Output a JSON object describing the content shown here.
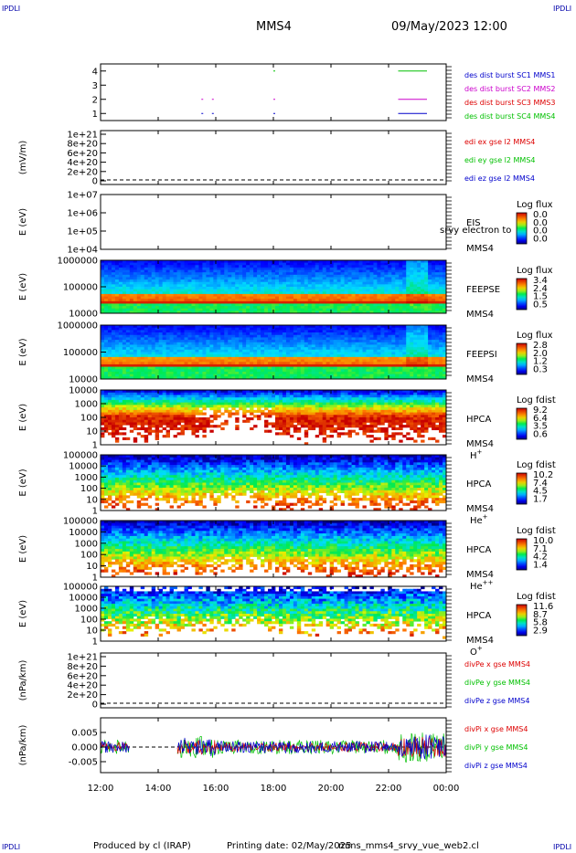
{
  "header": {
    "corner_label": "IPDLI",
    "spacecraft": "MMS4",
    "datetime": "09/May/2023 12:00"
  },
  "footer": {
    "produced_by": "Produced by cl (IRAP)",
    "printing_date": "Printing date: 02/May/2025",
    "filename": "mms_mms4_srvy_vue_web2.cl"
  },
  "colors": {
    "red": "#dd0000",
    "green": "#00c000",
    "blue": "#0000cc",
    "magenta": "#cc00cc"
  },
  "chart_data": [
    {
      "type": "line",
      "id": "burst",
      "yticks": [
        "1",
        "2",
        "3",
        "4"
      ],
      "ylim": [
        0.5,
        4.5
      ],
      "x_range": [
        "12:00",
        "00:00"
      ],
      "legend": [
        {
          "label": "des dist burst SC1 MMS1",
          "color": "#0000cc"
        },
        {
          "label": "des dist burst SC2 MMS2",
          "color": "#cc00cc"
        },
        {
          "label": "des dist burst SC3 MMS3",
          "color": "#dd0000"
        },
        {
          "label": "des dist burst SC4 MMS4",
          "color": "#00c000"
        }
      ],
      "segments": [
        {
          "y": 4,
          "color": "#00c000",
          "x": [
            [
              "18:00",
              "18:02"
            ],
            [
              "22:20",
              "23:20"
            ]
          ]
        },
        {
          "y": 2,
          "color": "#cc00cc",
          "x": [
            [
              "15:30",
              "15:33"
            ],
            [
              "15:52",
              "15:55"
            ],
            [
              "18:00",
              "18:03"
            ],
            [
              "22:20",
              "23:20"
            ]
          ]
        },
        {
          "y": 1,
          "color": "#0000cc",
          "x": [
            [
              "15:30",
              "15:33"
            ],
            [
              "15:52",
              "15:55"
            ],
            [
              "18:00",
              "18:03"
            ],
            [
              "22:20",
              "23:20"
            ]
          ]
        }
      ]
    },
    {
      "type": "line",
      "id": "edi",
      "ylabel": "(mV/m)",
      "yticks": [
        "0",
        "2e+20",
        "4e+20",
        "6e+20",
        "8e+20",
        "1e+21"
      ],
      "ylim": [
        0,
        1e+21
      ],
      "legend": [
        {
          "label": "edi ex gse l2 MMS4",
          "color": "#dd0000"
        },
        {
          "label": "edi ey gse l2 MMS4",
          "color": "#00c000"
        },
        {
          "label": "edi ez gse l2 MMS4",
          "color": "#0000cc"
        }
      ]
    },
    {
      "type": "heatmap",
      "id": "eis",
      "ylabel": "E (eV)",
      "yticks": [
        "1e+04",
        "1e+05",
        "1e+06",
        "1e+07"
      ],
      "labels": [
        "EIS",
        "MMS4"
      ],
      "overlay": "srvy electron to",
      "colorbar": {
        "title": "Log flux",
        "ticks": [
          "0.0",
          "0.0",
          "0.0",
          "0.0"
        ]
      }
    },
    {
      "type": "heatmap",
      "id": "feepse",
      "ylabel": "E (eV)",
      "yticks": [
        "10000",
        "100000",
        "1000000"
      ],
      "labels": [
        "FEEPSE",
        "MMS4"
      ],
      "colorbar": {
        "title": "Log flux",
        "ticks": [
          "3.4",
          "2.4",
          "1.5",
          "0.5"
        ]
      }
    },
    {
      "type": "heatmap",
      "id": "feepsi",
      "ylabel": "E (eV)",
      "yticks": [
        "10000",
        "100000",
        "1000000"
      ],
      "labels": [
        "FEEPSI",
        "MMS4"
      ],
      "colorbar": {
        "title": "Log flux",
        "ticks": [
          "2.8",
          "2.0",
          "1.2",
          "0.3"
        ]
      }
    },
    {
      "type": "heatmap",
      "id": "hpca_h",
      "ylabel": "E (eV)",
      "yticks": [
        "1",
        "10",
        "100",
        "1000",
        "10000"
      ],
      "labels": [
        "HPCA",
        "MMS4"
      ],
      "species": "H",
      "species_sup": "+",
      "colorbar": {
        "title": "Log fdist",
        "ticks": [
          "9.2",
          "6.4",
          "3.5",
          "0.6"
        ]
      }
    },
    {
      "type": "heatmap",
      "id": "hpca_he1",
      "ylabel": "E (eV)",
      "yticks": [
        "1",
        "10",
        "100",
        "1000",
        "10000",
        "100000"
      ],
      "labels": [
        "HPCA",
        "MMS4"
      ],
      "species": "He",
      "species_sup": "+",
      "colorbar": {
        "title": "Log fdist",
        "ticks": [
          "10.2",
          "7.4",
          "4.5",
          "1.7"
        ]
      }
    },
    {
      "type": "heatmap",
      "id": "hpca_he2",
      "ylabel": "E (eV)",
      "yticks": [
        "1",
        "10",
        "100",
        "1000",
        "10000",
        "100000"
      ],
      "labels": [
        "HPCA",
        "MMS4"
      ],
      "species": "He",
      "species_sup": "++",
      "colorbar": {
        "title": "Log fdist",
        "ticks": [
          "10.0",
          "7.1",
          "4.2",
          "1.4"
        ]
      }
    },
    {
      "type": "heatmap",
      "id": "hpca_o",
      "ylabel": "E (eV)",
      "yticks": [
        "1",
        "10",
        "100",
        "1000",
        "10000",
        "100000"
      ],
      "labels": [
        "HPCA",
        "MMS4"
      ],
      "species": "O",
      "species_sup": "+",
      "colorbar": {
        "title": "Log fdist",
        "ticks": [
          "11.6",
          "8.7",
          "5.8",
          "2.9"
        ]
      }
    },
    {
      "type": "line",
      "id": "divpe",
      "ylabel": "(nPa/km)",
      "yticks": [
        "0",
        "2e+20",
        "4e+20",
        "6e+20",
        "8e+20",
        "1e+21"
      ],
      "ylim": [
        0,
        1e+21
      ],
      "legend": [
        {
          "label": "divPe x gse MMS4",
          "color": "#dd0000"
        },
        {
          "label": "divPe y gse MMS4",
          "color": "#00c000"
        },
        {
          "label": "divPe z gse MMS4",
          "color": "#0000cc"
        }
      ]
    },
    {
      "type": "line",
      "id": "divpi",
      "ylabel": "(nPa/km)",
      "yticks": [
        "-0.005",
        "0.000",
        "0.005"
      ],
      "ylim": [
        -0.009,
        0.009
      ],
      "legend": [
        {
          "label": "divPi x gse MMS4",
          "color": "#dd0000"
        },
        {
          "label": "divPi y gse MMS4",
          "color": "#00c000"
        },
        {
          "label": "divPi z gse MMS4",
          "color": "#0000cc"
        }
      ]
    }
  ],
  "xaxis": {
    "ticks": [
      "12:00",
      "14:00",
      "16:00",
      "18:00",
      "20:00",
      "22:00",
      "00:00"
    ]
  }
}
